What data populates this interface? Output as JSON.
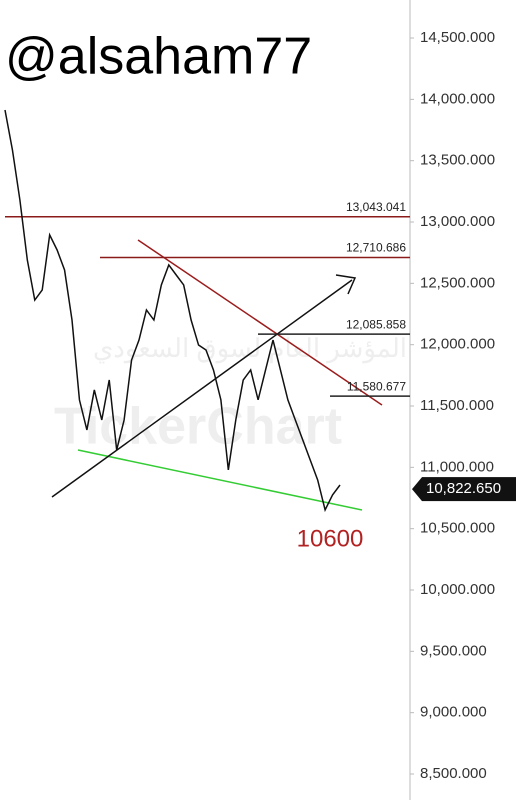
{
  "chart_data": {
    "type": "line",
    "title": "@alsaham77",
    "watermark": "TickerChart",
    "watermark_subtitle": "المؤشر العام لسوق السعودي",
    "annotation": "10600",
    "series": [
      {
        "color": "#111111",
        "values": [
          13913,
          13587,
          13180,
          12690,
          12364,
          12446,
          12895,
          12772,
          12609,
          12201,
          11550,
          11305,
          11631,
          11386,
          11712,
          11142,
          11386,
          11875,
          12038,
          12283,
          12201,
          12487,
          12650,
          12568,
          12487,
          12201,
          11997,
          11957,
          11794,
          11550,
          10979,
          11386,
          11712,
          11794,
          11550,
          11794,
          12038,
          11794,
          11550,
          11386,
          11223,
          11060,
          10897,
          10653,
          10775,
          10856
        ]
      }
    ],
    "ylim": [
      8288,
      14810
    ],
    "yticks": [
      {
        "value": 14500,
        "label": "14,500.000"
      },
      {
        "value": 14000,
        "label": "14,000.000"
      },
      {
        "value": 13500,
        "label": "13,500.000"
      },
      {
        "value": 13000,
        "label": "13,000.000"
      },
      {
        "value": 12500,
        "label": "12,500.000"
      },
      {
        "value": 12000,
        "label": "12,000.000"
      },
      {
        "value": 11500,
        "label": "11,500.000"
      },
      {
        "value": 11000,
        "label": "11,000.000"
      },
      {
        "value": 10500,
        "label": "10,500.000"
      },
      {
        "value": 10000,
        "label": "10,000.000"
      },
      {
        "value": 9500,
        "label": "9,500.000"
      },
      {
        "value": 9000,
        "label": "9,000.000"
      },
      {
        "value": 8500,
        "label": "8,500.000"
      }
    ],
    "levels": [
      {
        "value": 13043.041,
        "label": "13,043.041",
        "color": "#8b1a1a"
      },
      {
        "value": 12710.686,
        "label": "12,710.686",
        "color": "#8b1a1a"
      },
      {
        "value": 12085.858,
        "label": "12,085.858",
        "color": "#222222"
      },
      {
        "value": 11580.677,
        "label": "11,580.677",
        "color": "#222222"
      }
    ],
    "last_price": {
      "value": 10822.65,
      "label": "10,822.650"
    }
  }
}
